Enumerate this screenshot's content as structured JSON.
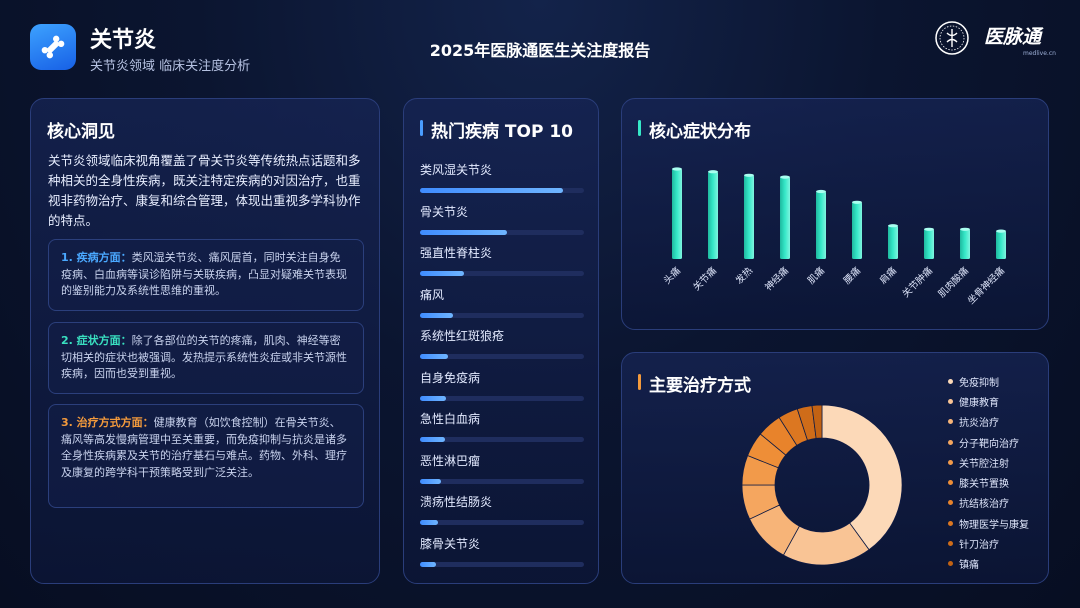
{
  "header": {
    "title": "关节炎",
    "subtitle": "关节炎领域 临床关注度分析",
    "report_title": "2025年医脉通医生关注度报告",
    "brand": "医脉通",
    "brand_url": "medlive.cn",
    "icon": "bone-icon"
  },
  "colors": {
    "accent_blue": "#4a9dff",
    "accent_teal": "#36e8c8",
    "accent_orange": "#f39a3c",
    "point_1": "#4aa8ff",
    "point_2": "#39e0c0",
    "point_3": "#f39a3c"
  },
  "insight": {
    "title": "核心洞见",
    "summary": "关节炎领域临床视角覆盖了骨关节炎等传统热点话题和多种相关的全身性疾病，既关注特定疾病的对因治疗，也重视非药物治疗、康复和综合管理，体现出重视多学科协作的特点。",
    "points": [
      {
        "head": "1. 疾病方面：",
        "text": "类风湿关节炎、痛风居首，同时关注自身免疫病、白血病等误诊陷阱与关联疾病，凸显对疑难关节表现的鉴别能力及系统性思维的重视。"
      },
      {
        "head": "2. 症状方面：",
        "text": "除了各部位的关节的疼痛，肌肉、神经等密切相关的症状也被强调。发热提示系统性炎症或非关节源性疾病，因而也受到重视。"
      },
      {
        "head": "3. 治疗方式方面：",
        "text": "健康教育（如饮食控制）在骨关节炎、痛风等高发慢病管理中至关重要，而免疫抑制与抗炎是诸多全身性疾病累及关节的治疗基石与难点。药物、外科、理疗及康复的跨学科干预策略受到广泛关注。"
      }
    ]
  },
  "top10": {
    "title": "热门疾病 TOP 10",
    "items": [
      {
        "name": "类风湿关节炎",
        "value": 0.87
      },
      {
        "name": "骨关节炎",
        "value": 0.53
      },
      {
        "name": "强直性脊柱炎",
        "value": 0.27
      },
      {
        "name": "痛风",
        "value": 0.2
      },
      {
        "name": "系统性红斑狼疮",
        "value": 0.17
      },
      {
        "name": "自身免疫病",
        "value": 0.16
      },
      {
        "name": "急性白血病",
        "value": 0.15
      },
      {
        "name": "恶性淋巴瘤",
        "value": 0.13
      },
      {
        "name": "溃疡性结肠炎",
        "value": 0.11
      },
      {
        "name": "膝骨关节炎",
        "value": 0.1
      }
    ]
  },
  "chart_data": [
    {
      "type": "bar",
      "title": "核心症状分布",
      "categories": [
        "头痛",
        "关节痛",
        "发热",
        "神经痛",
        "肌痛",
        "腰痛",
        "肩痛",
        "关节肿痛",
        "肌肉酸痛",
        "坐骨神经痛"
      ],
      "values": [
        100,
        97,
        93,
        91,
        75,
        63,
        37,
        33,
        33,
        31
      ],
      "ylim": [
        0,
        100
      ],
      "grid": false,
      "bar_color": "#36e8c8"
    },
    {
      "type": "pie",
      "title": "主要治疗方式",
      "donut": true,
      "labels": [
        "免疫抑制",
        "健康教育",
        "抗炎治疗",
        "分子靶向治疗",
        "关节腔注射",
        "膝关节置换",
        "抗结核治疗",
        "物理医学与康复",
        "针刀治疗",
        "镇痛"
      ],
      "values": [
        40,
        18,
        10,
        7,
        6,
        5,
        5,
        4,
        3,
        2
      ],
      "colors": [
        "#fcd9b8",
        "#f9c495",
        "#f7b478",
        "#f5a65f",
        "#f29a4a",
        "#ee8e37",
        "#e8832b",
        "#dc7721",
        "#cf6c19",
        "#c26213"
      ],
      "legend": "right"
    }
  ]
}
